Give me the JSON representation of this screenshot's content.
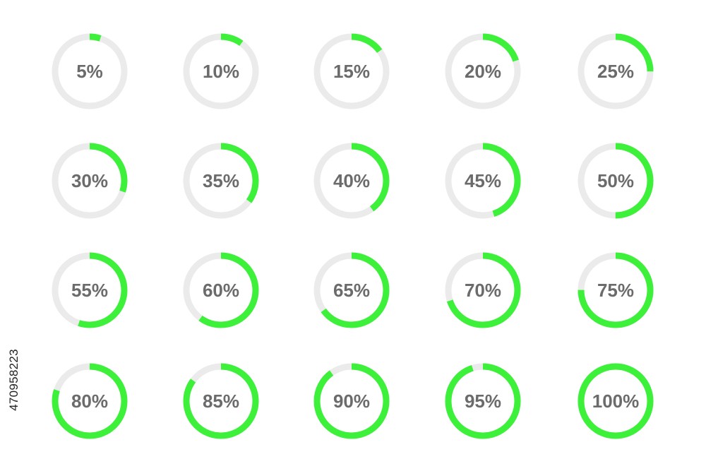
{
  "colors": {
    "progress": "#3df03a",
    "track": "#ebebeb",
    "label": "#6b6b6b"
  },
  "grid": {
    "columns": 5,
    "rows": 4
  },
  "indicators": [
    {
      "value": 5,
      "label": "5%"
    },
    {
      "value": 10,
      "label": "10%"
    },
    {
      "value": 15,
      "label": "15%"
    },
    {
      "value": 20,
      "label": "20%"
    },
    {
      "value": 25,
      "label": "25%"
    },
    {
      "value": 30,
      "label": "30%"
    },
    {
      "value": 35,
      "label": "35%"
    },
    {
      "value": 40,
      "label": "40%"
    },
    {
      "value": 45,
      "label": "45%"
    },
    {
      "value": 50,
      "label": "50%"
    },
    {
      "value": 55,
      "label": "55%"
    },
    {
      "value": 60,
      "label": "60%"
    },
    {
      "value": 65,
      "label": "65%"
    },
    {
      "value": 70,
      "label": "70%"
    },
    {
      "value": 75,
      "label": "75%"
    },
    {
      "value": 80,
      "label": "80%"
    },
    {
      "value": 85,
      "label": "85%"
    },
    {
      "value": 90,
      "label": "90%"
    },
    {
      "value": 95,
      "label": "95%"
    },
    {
      "value": 100,
      "label": "100%"
    }
  ],
  "stock_id": "470958223"
}
